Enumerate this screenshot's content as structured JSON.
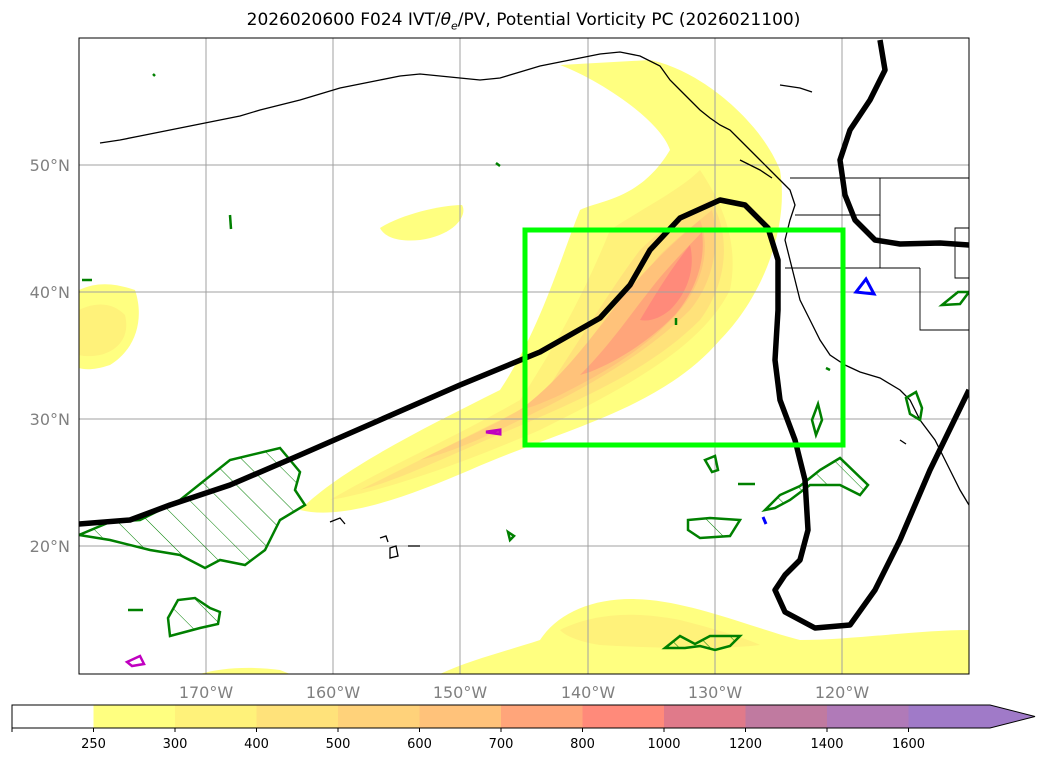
{
  "title": {
    "main": "2026020600 F024 IVT/",
    "theta": "θ",
    "theta_sub": "e",
    "rest": "/PV, Potential Vorticity PC (2026021100)"
  },
  "map": {
    "lat_labels": [
      "50°N",
      "40°N",
      "30°N",
      "20°N"
    ],
    "lon_labels": [
      "170°W",
      "160°W",
      "150°W",
      "140°W",
      "130°W",
      "120°W"
    ],
    "colors": {
      "box": "#00ff00",
      "pv_contour": "#000000",
      "green_contour": "#008000",
      "blue_contour": "#0000ff",
      "magenta_contour": "#c000c0"
    }
  },
  "colorbar": {
    "ticks": [
      "250",
      "300",
      "400",
      "500",
      "600",
      "700",
      "800",
      "1000",
      "1200",
      "1400",
      "1600"
    ],
    "colors": [
      "#ffffff",
      "#ffff80",
      "#fff27a",
      "#ffe27a",
      "#ffd27a",
      "#ffc27a",
      "#ffa57a",
      "#ff8a7a",
      "#e07a8a",
      "#c07aa0",
      "#b07ab8",
      "#a07ac8"
    ]
  }
}
